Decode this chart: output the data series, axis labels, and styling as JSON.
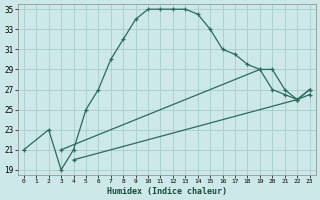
{
  "xlabel": "Humidex (Indice chaleur)",
  "bg_color": "#cce8e8",
  "grid_color": "#aacccc",
  "line_color": "#2a6b5e",
  "xlim": [
    -0.5,
    23.5
  ],
  "ylim": [
    18.5,
    35.5
  ],
  "xticks": [
    0,
    1,
    2,
    3,
    4,
    5,
    6,
    7,
    8,
    9,
    10,
    11,
    12,
    13,
    14,
    15,
    16,
    17,
    18,
    19,
    20,
    21,
    22,
    23
  ],
  "yticks": [
    19,
    21,
    23,
    25,
    27,
    29,
    31,
    33,
    35
  ],
  "curve1_x": [
    0,
    2,
    3,
    4,
    5,
    6,
    7,
    8,
    9,
    10,
    11,
    12,
    13,
    14,
    15,
    16,
    17,
    18,
    19,
    20,
    21,
    22,
    23
  ],
  "curve1_y": [
    21,
    23,
    19,
    21,
    25,
    27,
    30,
    32,
    34,
    35,
    35,
    35,
    35,
    34.5,
    33,
    31,
    30.5,
    29.5,
    29,
    27,
    26.5,
    26,
    27
  ],
  "curve2_x": [
    3,
    19,
    20,
    21,
    22,
    23
  ],
  "curve2_y": [
    21,
    29,
    29,
    27,
    26,
    27
  ],
  "curve3_x": [
    4,
    22,
    23
  ],
  "curve3_y": [
    20,
    26,
    26.5
  ]
}
